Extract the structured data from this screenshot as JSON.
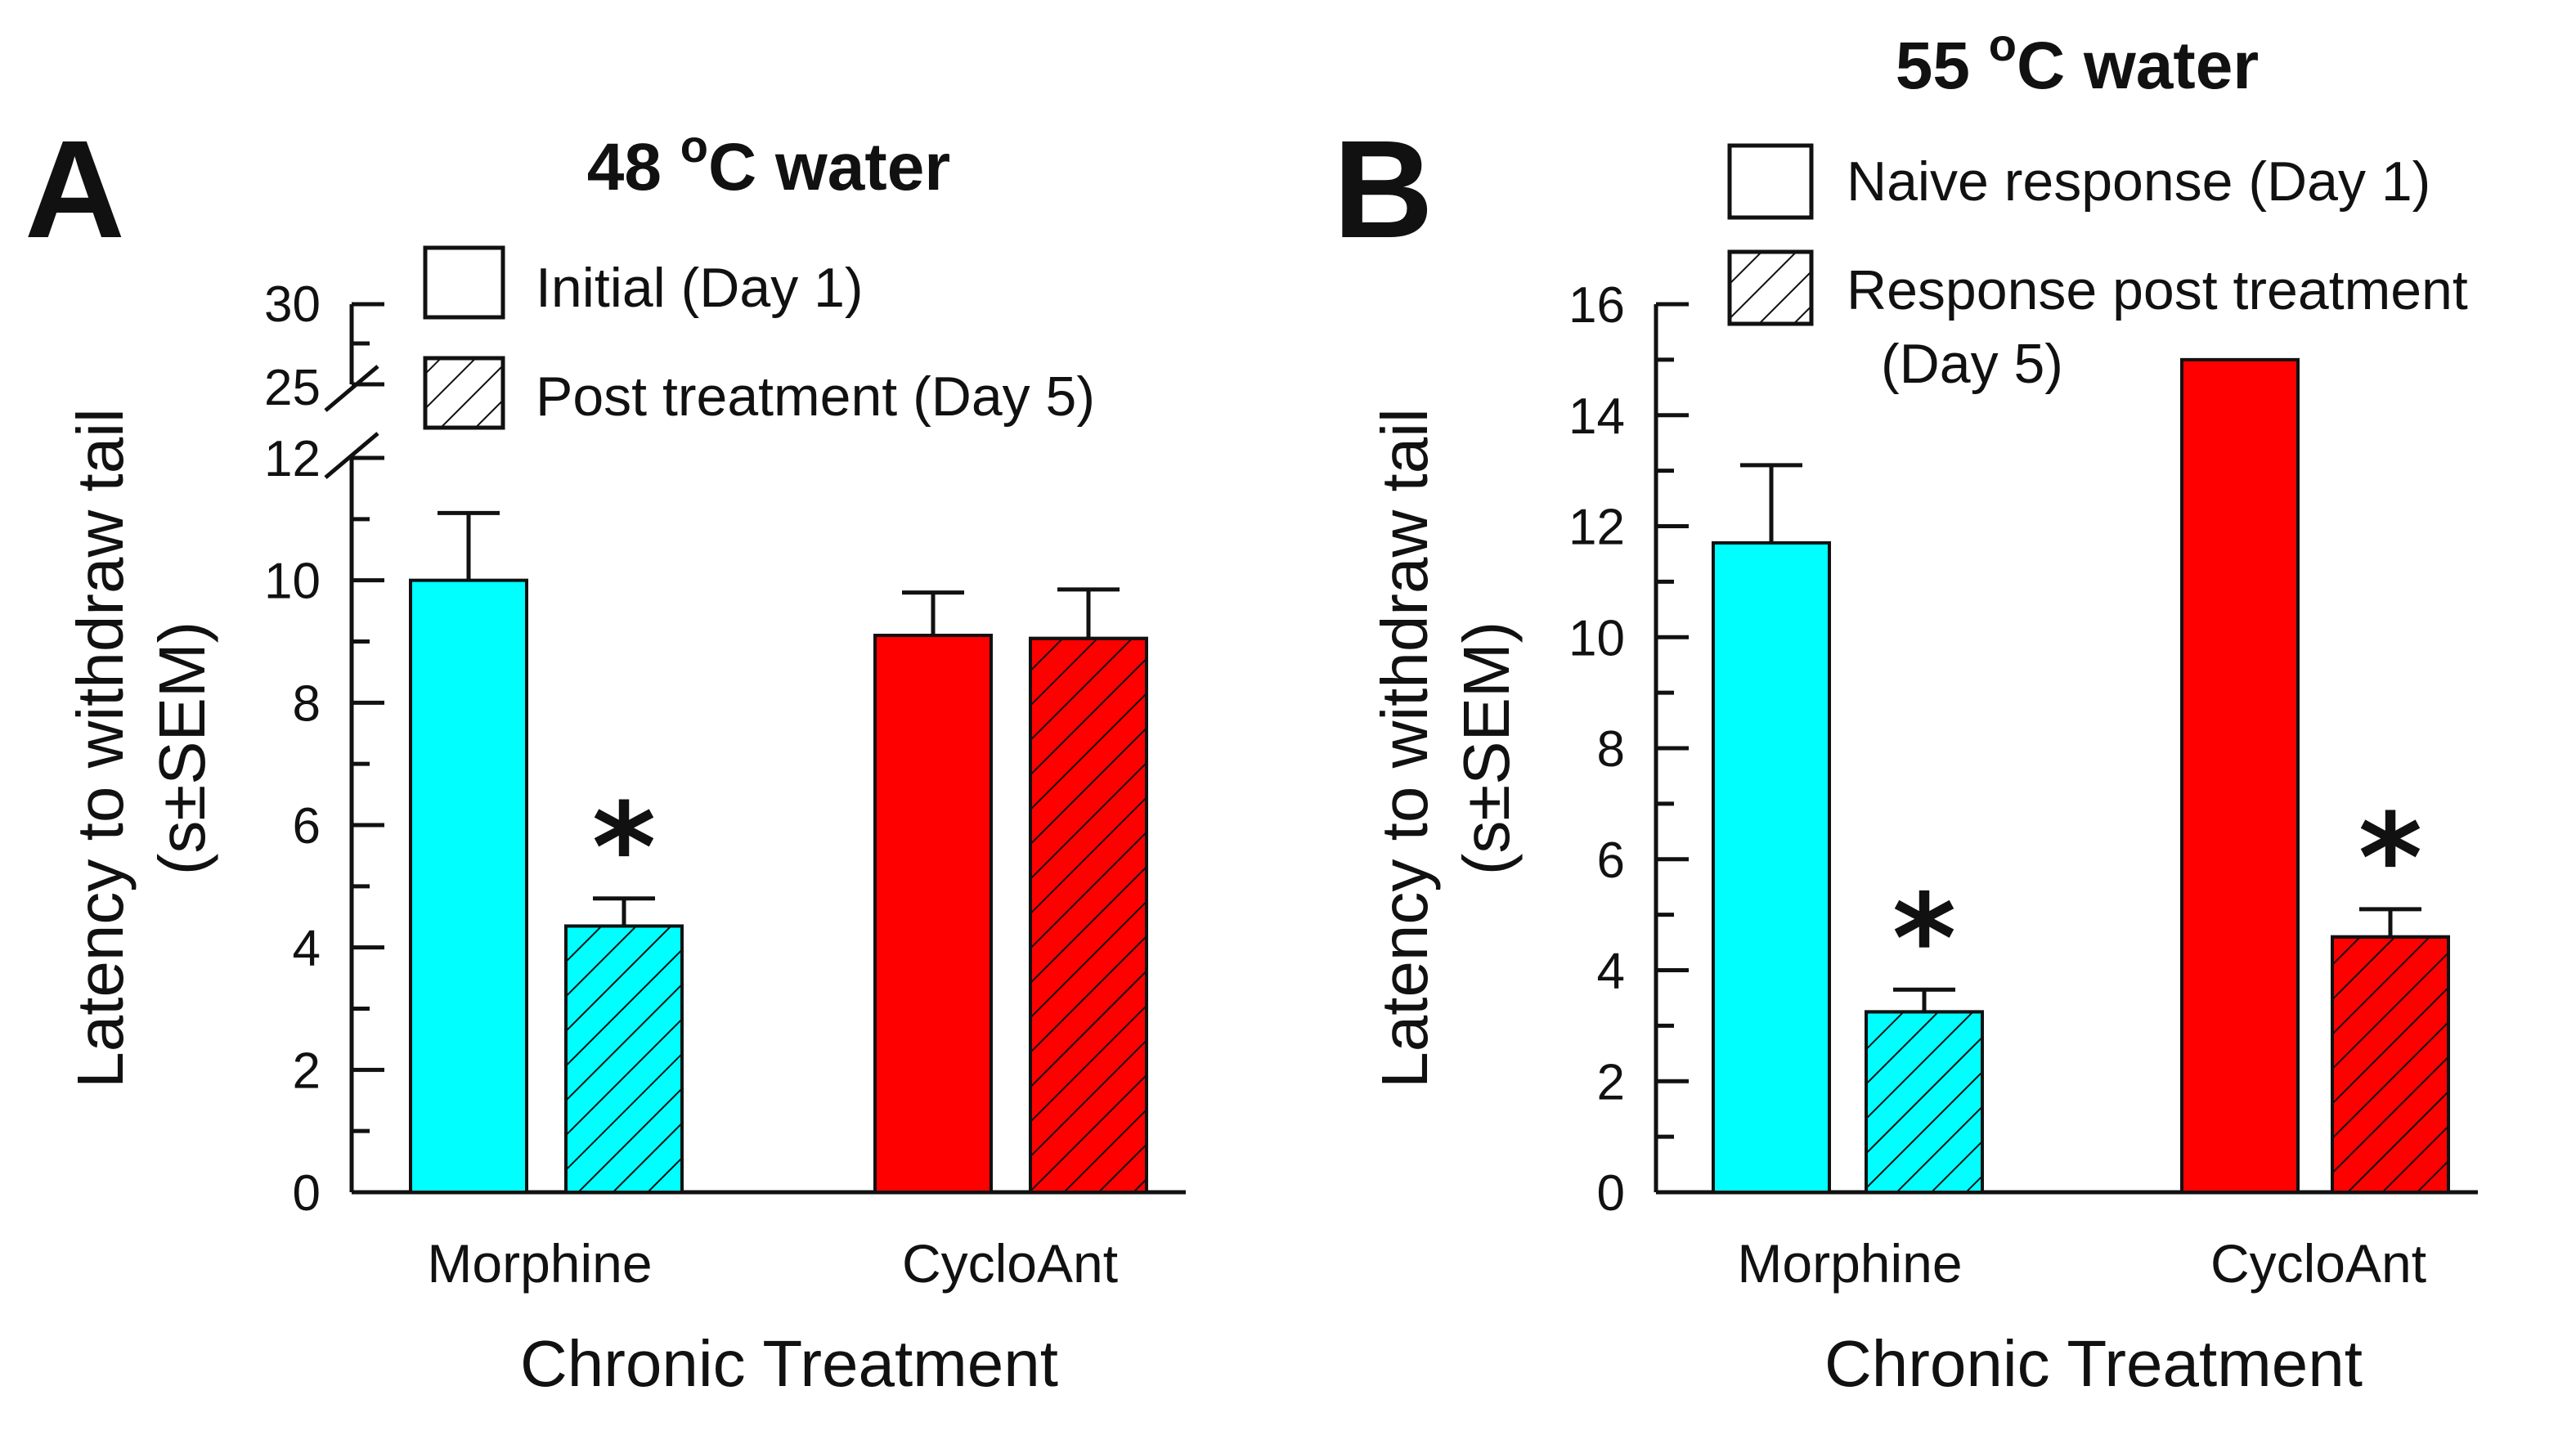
{
  "colors": {
    "morphine": "#00ffff",
    "cycloant": "#ff0000",
    "axis": "#111111"
  },
  "chart_data": [
    {
      "type": "bar",
      "panel": "A",
      "title": "48 °C water",
      "title_main": "48 ",
      "title_sup": "o",
      "title_end": "C water",
      "xlabel": "Chronic Treatment",
      "ylabel": "Latency to withdraw tail",
      "ylabel2": "(s±SEM)",
      "categories": [
        "Morphine",
        "CycloAnt"
      ],
      "ylim": [
        0,
        12
      ],
      "broken_axis": {
        "lower": [
          0,
          12
        ],
        "upper": [
          25,
          30
        ]
      },
      "yticks": [
        "0",
        "2",
        "4",
        "6",
        "8",
        "10",
        "12"
      ],
      "upper_ticks": [
        "25",
        "30"
      ],
      "series": [
        {
          "name": "Initial (Day 1)",
          "pattern": "solid",
          "values": [
            10.0,
            9.1
          ],
          "errors": [
            1.1,
            0.7
          ]
        },
        {
          "name": "Post treatment (Day 5)",
          "pattern": "hatched",
          "values": [
            4.35,
            9.05
          ],
          "errors": [
            0.45,
            0.8
          ]
        }
      ],
      "significance": [
        {
          "category": "Morphine",
          "series": "Post treatment (Day 5)",
          "label": "*"
        }
      ]
    },
    {
      "type": "bar",
      "panel": "B",
      "title": "55 °C water",
      "title_main": "55 ",
      "title_sup": "o",
      "title_end": "C water",
      "xlabel": "Chronic Treatment",
      "ylabel": "Latency to withdraw tail",
      "ylabel2": "(s±SEM)",
      "categories": [
        "Morphine",
        "CycloAnt"
      ],
      "ylim": [
        0,
        16
      ],
      "yticks": [
        "0",
        "2",
        "4",
        "6",
        "8",
        "10",
        "12",
        "14",
        "16"
      ],
      "series": [
        {
          "name": "Naive response (Day 1)",
          "pattern": "solid",
          "values": [
            11.7,
            15.0
          ],
          "errors": [
            1.4,
            0
          ]
        },
        {
          "name": "Response post treatment",
          "name_line2": "(Day 5)",
          "pattern": "hatched",
          "values": [
            3.25,
            4.6
          ],
          "errors": [
            0.4,
            0.5
          ]
        }
      ],
      "significance": [
        {
          "category": "Morphine",
          "series": "Response post treatment",
          "label": "*"
        },
        {
          "category": "CycloAnt",
          "series": "Response post treatment",
          "label": "*"
        }
      ]
    }
  ]
}
